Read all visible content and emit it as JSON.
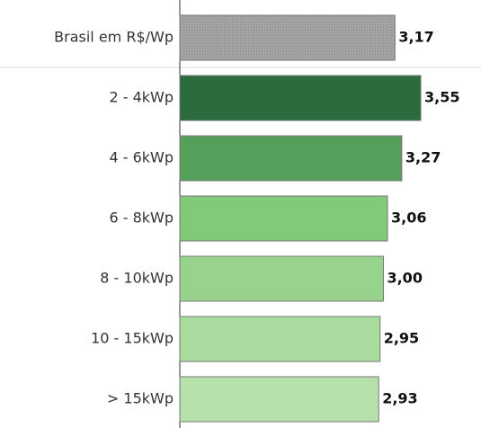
{
  "chart_data": {
    "type": "bar",
    "orientation": "horizontal",
    "categories": [
      "Brasil em R$/Wp",
      "2 - 4kWp",
      "4 - 6kWp",
      "6 - 8kWp",
      "8 - 10kWp",
      "10 - 15kWp",
      "> 15kWp"
    ],
    "values": [
      3.17,
      3.55,
      3.27,
      3.06,
      3.0,
      2.95,
      2.93
    ],
    "value_labels": [
      "3,17",
      "3,55",
      "3,27",
      "3,06",
      "3,00",
      "2,95",
      "2,93"
    ],
    "colors": [
      "#a3a3a3",
      "#2b6b3d",
      "#54a05b",
      "#82c97a",
      "#97d38c",
      "#aadc9f",
      "#b6e1aa"
    ]
  }
}
